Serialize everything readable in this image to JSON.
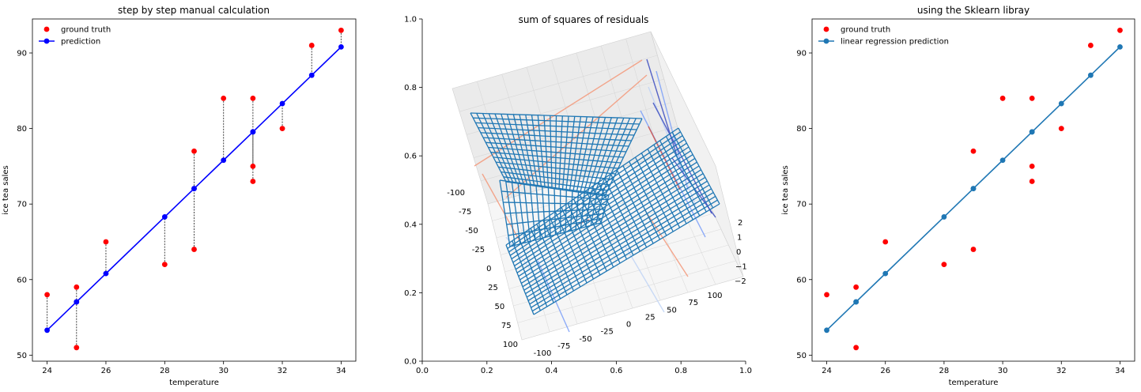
{
  "figure": {
    "panels": [
      {
        "title": "step by step manual calculation"
      },
      {
        "title": "sum of squares of residuals"
      },
      {
        "title": "using the Sklearn libray"
      }
    ]
  },
  "chart_data": [
    {
      "type": "scatter",
      "title": "step by step manual calculation",
      "xlabel": "temperature",
      "ylabel": "ice tea sales",
      "xlim": [
        23.5,
        34.5
      ],
      "ylim": [
        49.2,
        94.5
      ],
      "xticks": [
        24,
        26,
        28,
        30,
        32,
        34
      ],
      "yticks": [
        50,
        60,
        70,
        80,
        90
      ],
      "legend": {
        "position": "top-left",
        "entries": [
          "ground truth",
          "prediction"
        ]
      },
      "series": [
        {
          "name": "ground truth",
          "color": "#ff0000",
          "kind": "points",
          "x": [
            24,
            25,
            25,
            26,
            28,
            29,
            29,
            30,
            31,
            31,
            31,
            32,
            33,
            34
          ],
          "y": [
            58,
            59,
            51,
            65,
            62,
            77,
            64,
            84,
            84,
            75,
            73,
            80,
            91,
            93
          ]
        },
        {
          "name": "prediction",
          "color": "#0000ff",
          "kind": "line+points",
          "x": [
            24,
            25,
            25,
            26,
            28,
            29,
            29,
            30,
            31,
            31,
            31,
            32,
            33,
            34
          ],
          "y": [
            53.3,
            57.05,
            57.05,
            60.8,
            68.3,
            72.05,
            72.05,
            75.8,
            79.55,
            79.55,
            79.55,
            83.3,
            87.05,
            90.8
          ]
        }
      ],
      "residual_lines": {
        "color": "#555555",
        "style": "dashed"
      }
    },
    {
      "type": "surface",
      "title": "sum of squares of residuals",
      "outer_axes": {
        "xlim": [
          0,
          1
        ],
        "ylim": [
          0,
          1
        ],
        "xticks": [
          "0.0",
          "0.2",
          "0.4",
          "0.6",
          "0.8",
          "1.0"
        ],
        "yticks": [
          "0.0",
          "0.2",
          "0.4",
          "0.6",
          "0.8",
          "1.0"
        ]
      },
      "axis_a_ticks": [
        "-100",
        "-75",
        "-50",
        "-25",
        "0",
        "25",
        "50",
        "75",
        "100"
      ],
      "axis_b_ticks": [
        "-100",
        "-75",
        "-50",
        "-25",
        "0",
        "25",
        "50",
        "75",
        "100"
      ],
      "axis_c_ticks": [
        "2",
        "1",
        "0",
        "−1",
        "−2"
      ],
      "wire_color": "#1f77b4",
      "contour_colors": [
        "#3b4cc0",
        "#7b9ff9",
        "#c0d4f5",
        "#f4987a",
        "#d65244"
      ]
    },
    {
      "type": "scatter",
      "title": "using the Sklearn libray",
      "xlabel": "temperature",
      "ylabel": "ice tea sales",
      "xlim": [
        23.5,
        34.5
      ],
      "ylim": [
        49.2,
        94.5
      ],
      "xticks": [
        24,
        26,
        28,
        30,
        32,
        34
      ],
      "yticks": [
        50,
        60,
        70,
        80,
        90
      ],
      "legend": {
        "position": "top-left",
        "entries": [
          "ground truth",
          "linear regression prediction"
        ]
      },
      "series": [
        {
          "name": "ground truth",
          "color": "#ff0000",
          "kind": "points",
          "x": [
            24,
            25,
            25,
            26,
            28,
            29,
            29,
            30,
            31,
            31,
            31,
            32,
            33,
            34
          ],
          "y": [
            58,
            59,
            51,
            65,
            62,
            77,
            64,
            84,
            84,
            75,
            73,
            80,
            91,
            93
          ]
        },
        {
          "name": "linear regression prediction",
          "color": "#1f77b4",
          "kind": "line+points",
          "x": [
            24,
            25,
            25,
            26,
            28,
            29,
            29,
            30,
            31,
            31,
            31,
            32,
            33,
            34
          ],
          "y": [
            53.3,
            57.05,
            57.05,
            60.8,
            68.3,
            72.05,
            72.05,
            75.8,
            79.55,
            79.55,
            79.55,
            83.3,
            87.05,
            90.8
          ]
        }
      ]
    }
  ]
}
